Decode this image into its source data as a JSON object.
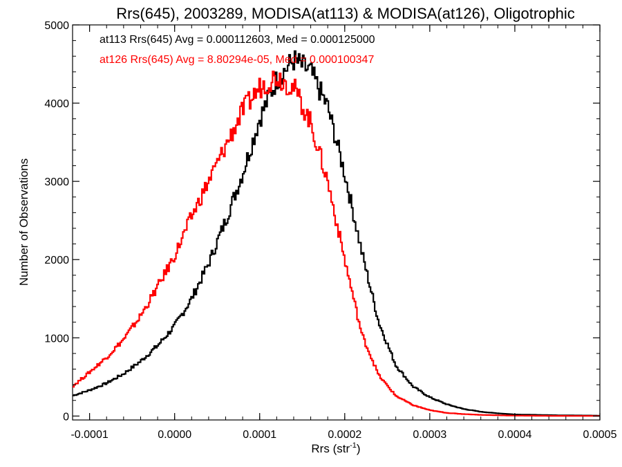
{
  "chart_data": {
    "type": "line",
    "style": "step-histogram",
    "title": "Rrs(645), 2003289, MODISA(at113) & MODISA(at126), Oligotrophic",
    "xlabel": "Rrs (str",
    "xlabel_sup": "-1",
    "xlabel_close": ")",
    "ylabel": "Number of Observations",
    "xlim": [
      -0.00012,
      0.0005
    ],
    "ylim": [
      -50,
      5000
    ],
    "xticks": [
      -0.0001,
      0.0,
      0.0001,
      0.0002,
      0.0003,
      0.0004,
      0.0005
    ],
    "xtick_labels": [
      "-0.0001",
      "0.0000",
      "0.0001",
      "0.0002",
      "0.0003",
      "0.0004",
      "0.0005"
    ],
    "yticks": [
      0,
      1000,
      2000,
      3000,
      4000,
      5000
    ],
    "ytick_labels": [
      "0",
      "1000",
      "2000",
      "3000",
      "4000",
      "5000"
    ],
    "grid": false,
    "series": [
      {
        "name": "at113",
        "color": "#000000",
        "stats_text": "at113 Rrs(645) Avg = 0.000112603, Med = 0.000125000",
        "x": [
          -0.00012,
          -0.0001,
          -8e-05,
          -6e-05,
          -4e-05,
          -2e-05,
          0.0,
          2e-05,
          4e-05,
          6e-05,
          8e-05,
          0.0001,
          0.00012,
          0.00014,
          0.00016,
          0.00018,
          0.0002,
          0.00022,
          0.00024,
          0.00026,
          0.00028,
          0.0003,
          0.00032,
          0.00034,
          0.00036,
          0.00038,
          0.0004,
          0.00045,
          0.0005
        ],
        "y": [
          260,
          330,
          420,
          540,
          700,
          900,
          1150,
          1500,
          1950,
          2500,
          3100,
          3800,
          4300,
          4550,
          4400,
          3950,
          3100,
          2100,
          1200,
          650,
          380,
          240,
          150,
          90,
          55,
          35,
          20,
          10,
          5
        ]
      },
      {
        "name": "at126",
        "color": "#ff0000",
        "stats_text": "at126 Rrs(645) Avg = 8.80294e-05, Med = 0.000100347",
        "x": [
          -0.00012,
          -0.0001,
          -8e-05,
          -6e-05,
          -4e-05,
          -2e-05,
          0.0,
          2e-05,
          4e-05,
          6e-05,
          8e-05,
          0.0001,
          0.00012,
          0.00014,
          0.00016,
          0.00018,
          0.0002,
          0.00022,
          0.00024,
          0.00026,
          0.00028,
          0.0003,
          0.00032,
          0.00034,
          0.00036,
          0.00038,
          0.0004,
          0.00045,
          0.0005
        ],
        "y": [
          380,
          560,
          750,
          980,
          1280,
          1650,
          2050,
          2550,
          3000,
          3450,
          3900,
          4200,
          4350,
          4200,
          3750,
          3000,
          2000,
          1050,
          520,
          260,
          140,
          75,
          40,
          25,
          15,
          10,
          5,
          2,
          1
        ]
      }
    ]
  }
}
